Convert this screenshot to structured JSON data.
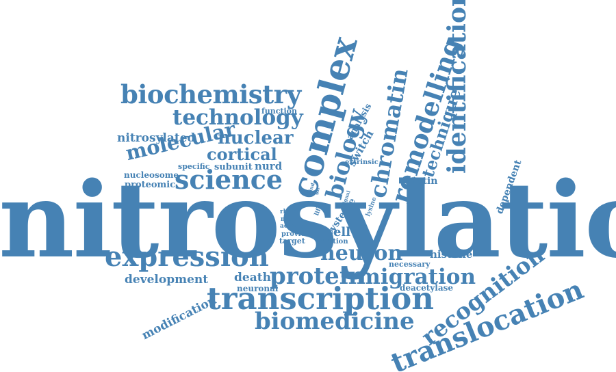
{
  "color": "#4682b4",
  "words": {
    "nitrosylation": "nitrosylation",
    "expression": "expression",
    "transcription": "transcription",
    "biomedicine": "biomedicine",
    "translocation": "translocation",
    "recognition": "recognition",
    "science": "science",
    "biochemistry": "biochemistry",
    "technology": "technology",
    "molecular": "molecular",
    "nuclear": "nuclear",
    "cortical": "cortical",
    "complex": "complex",
    "biology": "biology",
    "chromatin": "chromatin",
    "remodelling": "remodelling",
    "technique": "technique",
    "identification": "identification",
    "protein": "protein",
    "migration": "migration",
    "neuron": "neuron",
    "development": "development",
    "modification": "modification",
    "nitrosylated": "nitrosylated",
    "nucleosome": "nucleosome",
    "proteomic": "proteomic",
    "specific": "specific",
    "subunit": "subunit",
    "nurd": "nurd",
    "function": "function",
    "analysis": "analysis",
    "switch": "switch",
    "extrinsic": "extrinsic",
    "biotin": "biotin",
    "dependent": "dependent",
    "histone": "histone",
    "necessary": "necessary",
    "deacetylase": "deacetylase",
    "death": "death",
    "neuronal": "neuronal",
    "cell": "cell",
    "cysteine": "cysteine",
    "lysine": "lysine",
    "addition": "addition",
    "target": "target",
    "provide": "provide",
    "activity": "activity",
    "motif": "motif",
    "rbbp": "rbbp",
    "life": "life",
    "signal": "signal",
    "bind": "bind",
    "sir": "sir"
  }
}
